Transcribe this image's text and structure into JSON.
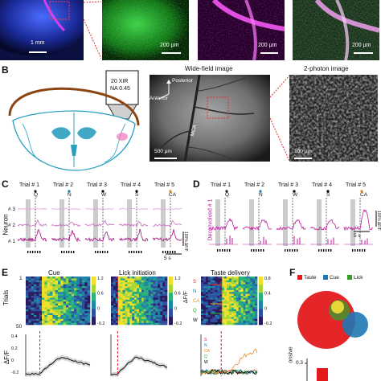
{
  "panel_letters": {
    "b": "B",
    "c": "C",
    "d": "D",
    "e": "E",
    "f": "F"
  },
  "panel_a": {
    "scalebars": [
      "1 mm",
      "200 μm",
      "200 μm",
      "200 μm"
    ]
  },
  "panel_b": {
    "objective_line1": "20 XIR",
    "objective_line2": "NA 0.45",
    "widefield_title": "Wide-field image",
    "twophoton_title": "2-photon image",
    "posterior": "Posterior",
    "anterior": "Anterior",
    "vessel": "MCA",
    "scale_widefield": "500 μm",
    "scale_twophoton": "100 μm"
  },
  "panel_c": {
    "trials": [
      "Trial # 1",
      "Trial # 2",
      "Trial # 3",
      "Trial # 4",
      "Trial # 5"
    ],
    "cues": [
      "Q",
      "N",
      "W",
      "S",
      "CA"
    ],
    "neurons": [
      "# 3",
      "# 2",
      "# 1"
    ],
    "ylabel": "Neuron",
    "scale_y": "100% ΔF/F",
    "scale_x": "5 s"
  },
  "panel_d": {
    "trials": [
      "Trial # 1",
      "Trial # 2",
      "Trial # 3",
      "Trial # 4",
      "Trial # 5"
    ],
    "cues": [
      "Q",
      "N",
      "W",
      "S",
      "CA"
    ],
    "ylabel": "Deconvolved # 1",
    "scale_y": "100% ΔF/F",
    "scale_x": "5 s"
  },
  "panel_e": {
    "titles": [
      "Cue",
      "Lick initiation",
      "Taste delivery"
    ],
    "ylabel_trials": "Trials",
    "ylabel_dff": "ΔF/F",
    "yticks_trials": [
      "1",
      "50"
    ],
    "colorbar_ticks_a": [
      "1.2",
      "0.6",
      "0",
      "-0.2"
    ],
    "colorbar_ticks_b": [
      "1.2",
      "0.6",
      "0",
      "-0.2"
    ],
    "colorbar_ticks_c": [
      "0.8",
      "0.4",
      "0",
      "-0.2"
    ],
    "colorbar_label": "ΔF/F",
    "line_yticks": [
      "0.4",
      "0.2",
      "0",
      "-0.2"
    ],
    "taste_legend": [
      "S",
      "N",
      "CA",
      "Q",
      "W"
    ],
    "taste_colors": [
      "#d62728",
      "#1f77b4",
      "#e08a1e",
      "#2ca02c",
      "#000000"
    ]
  },
  "panel_f": {
    "legend": [
      "Taste",
      "Cue",
      "Lick"
    ],
    "colors": [
      "#e31a1c",
      "#1f78b4",
      "#33a02c"
    ],
    "ytick": "0.3",
    "ylabel_fragment": "onsive"
  }
}
